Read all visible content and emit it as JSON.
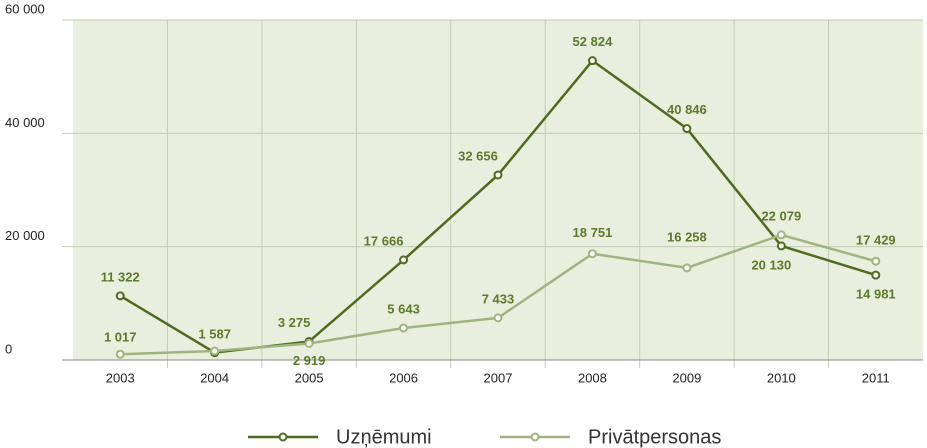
{
  "chart_data": {
    "type": "line",
    "categories": [
      "2003",
      "2004",
      "2005",
      "2006",
      "2007",
      "2008",
      "2009",
      "2010",
      "2011"
    ],
    "series": [
      {
        "name": "Uzņēmumi",
        "color": "#4e6b1e",
        "values": [
          11322,
          1300,
          3275,
          17666,
          32656,
          52824,
          40846,
          20130,
          14981
        ],
        "value_labels": [
          "11 322",
          null,
          "3 275",
          "17 666",
          "32 656",
          "52 824",
          "40 846",
          "20 130",
          "14 981"
        ]
      },
      {
        "name": "Privātpersonas",
        "color": "#9fb57f",
        "values": [
          1017,
          1587,
          2919,
          5643,
          7433,
          18751,
          16258,
          22079,
          17429
        ],
        "value_labels": [
          "1 017",
          "1 587",
          "2 919",
          "5 643",
          "7 433",
          "18 751",
          "16 258",
          "22 079",
          "17 429"
        ]
      }
    ],
    "ylim": [
      0,
      60000
    ],
    "yticks": [
      0,
      {
        "value": 20000,
        "label": "20 000"
      },
      {
        "value": 40000,
        "label": "40 000"
      },
      {
        "value": 60000,
        "label": "60 000"
      }
    ],
    "grid": true
  }
}
